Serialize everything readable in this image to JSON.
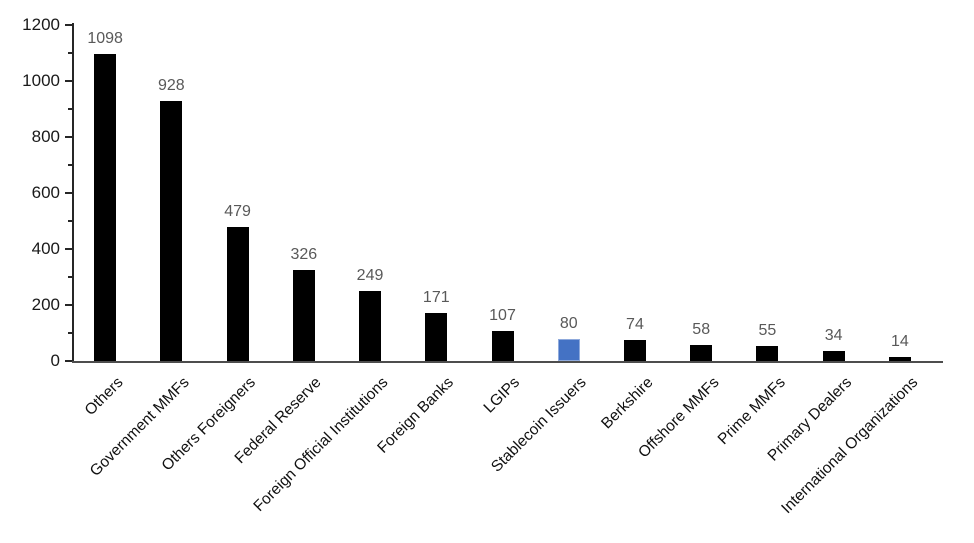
{
  "chart_data": {
    "type": "bar",
    "categories": [
      "Others",
      "Government MMFs",
      "Others Foreigners",
      "Federal Reserve",
      "Foreign Official Institutions",
      "Foreign Banks",
      "LGIPs",
      "Stablecoin Issuers",
      "Berkshire",
      "Offshore MMFs",
      "Prime MMFs",
      "Primary Dealers",
      "International Organizations"
    ],
    "values": [
      1098,
      928,
      479,
      326,
      249,
      171,
      107,
      80,
      74,
      58,
      55,
      34,
      14
    ],
    "highlighted_category": "Stablecoin Issuers",
    "ylim": [
      0,
      1200
    ],
    "yticks": [
      0,
      200,
      400,
      600,
      800,
      1000,
      1200
    ],
    "minor_tick_interval": 100,
    "grid": "off",
    "legend": "none",
    "colors": {
      "bar": "#000000",
      "highlight_bar": "#4472C4",
      "highlight_bar_edge": "#8faadc",
      "value_labels": "#595959",
      "axis": "#262626",
      "baseline": "#4d4d4d",
      "tick_labels": "#1a1a1a"
    }
  }
}
